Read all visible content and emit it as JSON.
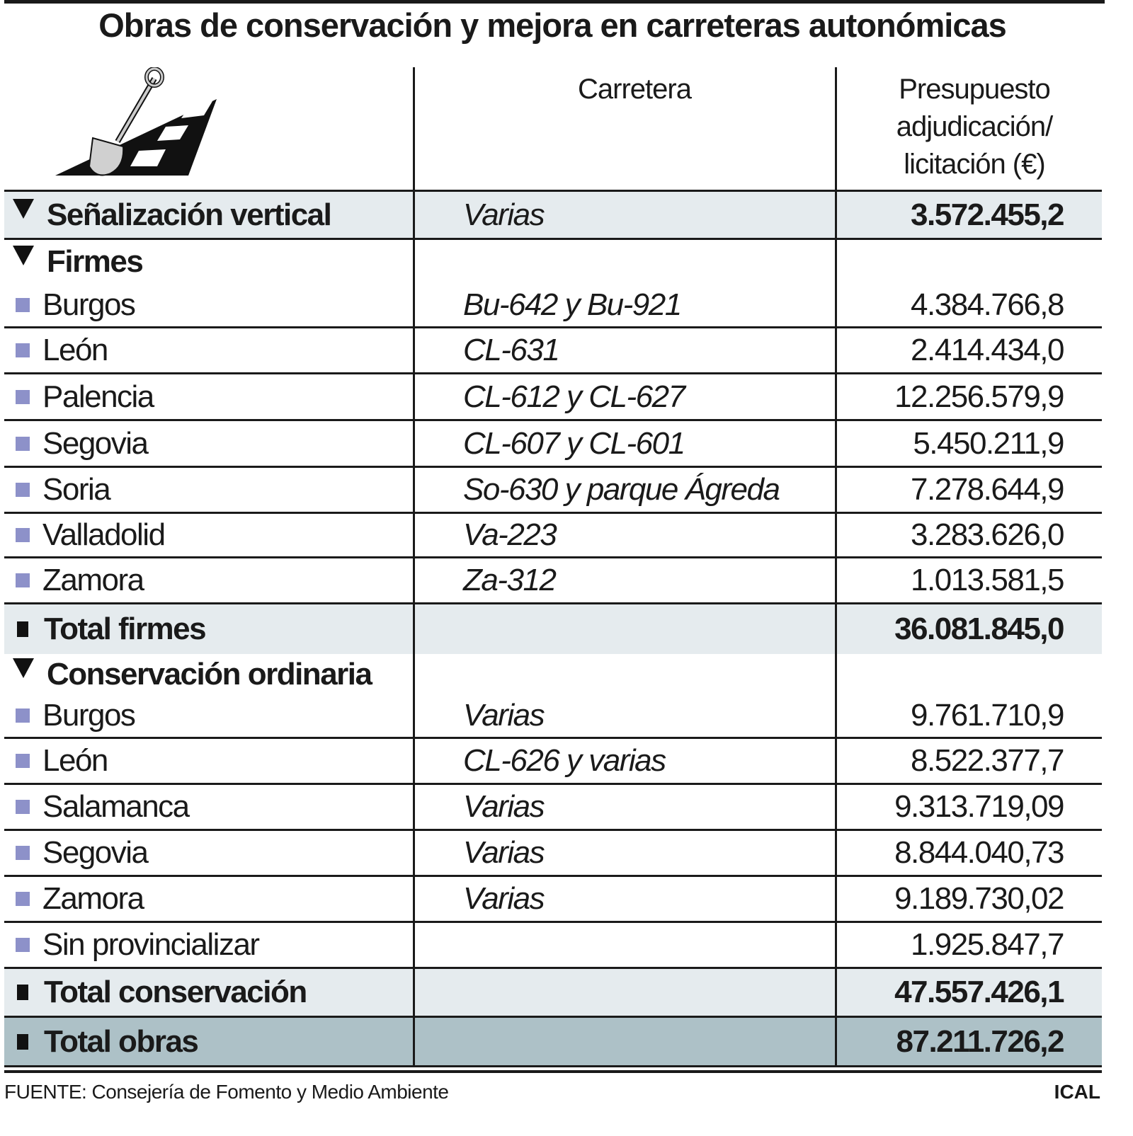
{
  "title": "Obras de conservación y mejora en carreteras autonómicas",
  "columns": {
    "road": "Carretera",
    "budget_lines": [
      "Presupuesto",
      "adjudicación/",
      "licitación (€)"
    ]
  },
  "colors": {
    "shade": "#e5ebee",
    "grand_total": "#adc1c7",
    "bullet": "#8d91c9"
  },
  "icon": "shovel-road-icon",
  "rows": [
    {
      "type": "section",
      "label": "Señalización vertical",
      "road": "Varias",
      "value": "3.572.455,2",
      "h": 68,
      "shade": true,
      "line": true,
      "bold_value": true
    },
    {
      "type": "section",
      "label": "Firmes",
      "road": "",
      "value": "",
      "h": 62,
      "line": false
    },
    {
      "type": "item",
      "label": "Burgos",
      "road": "Bu-642 y Bu-921",
      "value": "4.384.766,8",
      "h": 63,
      "line": true
    },
    {
      "type": "item",
      "label": "León",
      "road": "CL-631",
      "value": "2.414.434,0",
      "h": 65,
      "line": true
    },
    {
      "type": "item",
      "label": "Palencia",
      "road": "CL-612 y CL-627",
      "value": "12.256.579,9",
      "h": 66,
      "line": true
    },
    {
      "type": "item",
      "label": "Segovia",
      "road": "CL-607 y CL-601",
      "value": "5.450.211,9",
      "h": 66,
      "line": true
    },
    {
      "type": "item",
      "label": "Soria",
      "road": "So-630 y parque Ágreda",
      "value": "7.278.644,9",
      "h": 65,
      "line": true
    },
    {
      "type": "item",
      "label": "Valladolid",
      "road": "Va-223",
      "value": "3.283.626,0",
      "h": 63,
      "line": true
    },
    {
      "type": "item",
      "label": "Zamora",
      "road": "Za-312",
      "value": "1.013.581,5",
      "h": 65,
      "line": true
    },
    {
      "type": "total",
      "label": "Total firmes",
      "road": "",
      "value": "36.081.845,0",
      "h": 70,
      "shade": true,
      "line": false
    },
    {
      "type": "section",
      "label": "Conservación ordinaria",
      "road": "",
      "value": "",
      "h": 57,
      "line": false
    },
    {
      "type": "item",
      "label": "Burgos",
      "road": "Varias",
      "value": "9.761.710,9",
      "h": 63,
      "line": true
    },
    {
      "type": "item",
      "label": "León",
      "road": "CL-626 y varias",
      "value": "8.522.377,7",
      "h": 65,
      "line": true
    },
    {
      "type": "item",
      "label": "Salamanca",
      "road": "Varias",
      "value": "9.313.719,09",
      "h": 65,
      "line": true
    },
    {
      "type": "item",
      "label": "Segovia",
      "road": "Varias",
      "value": "8.844.040,73",
      "h": 65,
      "line": true
    },
    {
      "type": "item",
      "label": "Zamora",
      "road": "Varias",
      "value": "9.189.730,02",
      "h": 65,
      "line": true
    },
    {
      "type": "item",
      "label": "Sin provincializar",
      "road": "",
      "value": "1.925.847,7",
      "h": 65,
      "line": true
    },
    {
      "type": "total",
      "label": "Total conservación",
      "road": "",
      "value": "47.557.426,1",
      "h": 69,
      "shade": true,
      "line": true
    },
    {
      "type": "total",
      "label": "Total obras",
      "road": "",
      "value": "87.211.726,2",
      "h": 70,
      "grand": true,
      "line": true
    }
  ],
  "footer": {
    "source": "FUENTE: Consejería de Fomento y Medio Ambiente",
    "brand": "ICAL"
  }
}
